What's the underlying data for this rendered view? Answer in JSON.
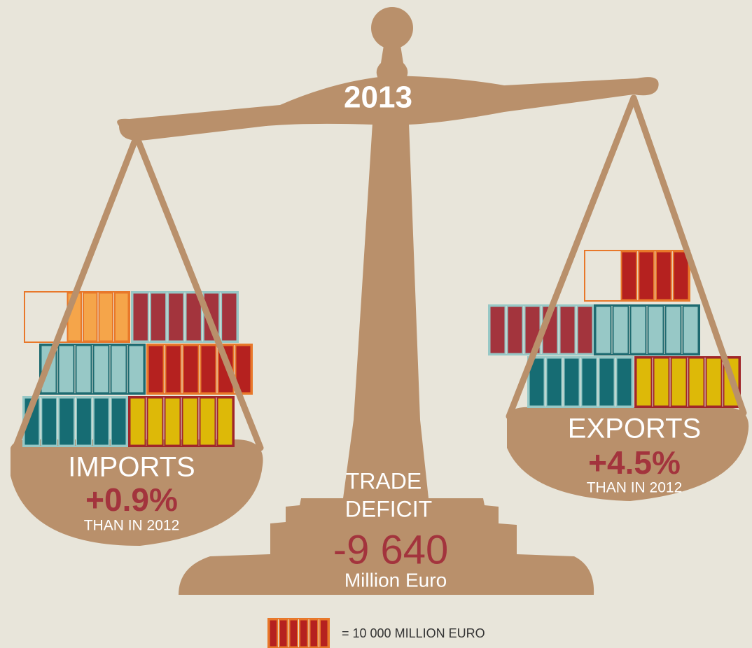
{
  "title": "2013",
  "imports": {
    "label": "IMPORTS",
    "change": "+0.9%",
    "note": "THAN IN 2012"
  },
  "trade_deficit": {
    "label": [
      "TRADE",
      "DEFICIT"
    ],
    "value": "-9 640",
    "unit": "Million Euro"
  },
  "exports": {
    "label": "EXPORTS",
    "change": "+4.5%",
    "note": "THAN IN 2012"
  },
  "legend": {
    "label": "= 10 000 MILLION EURO"
  }
}
